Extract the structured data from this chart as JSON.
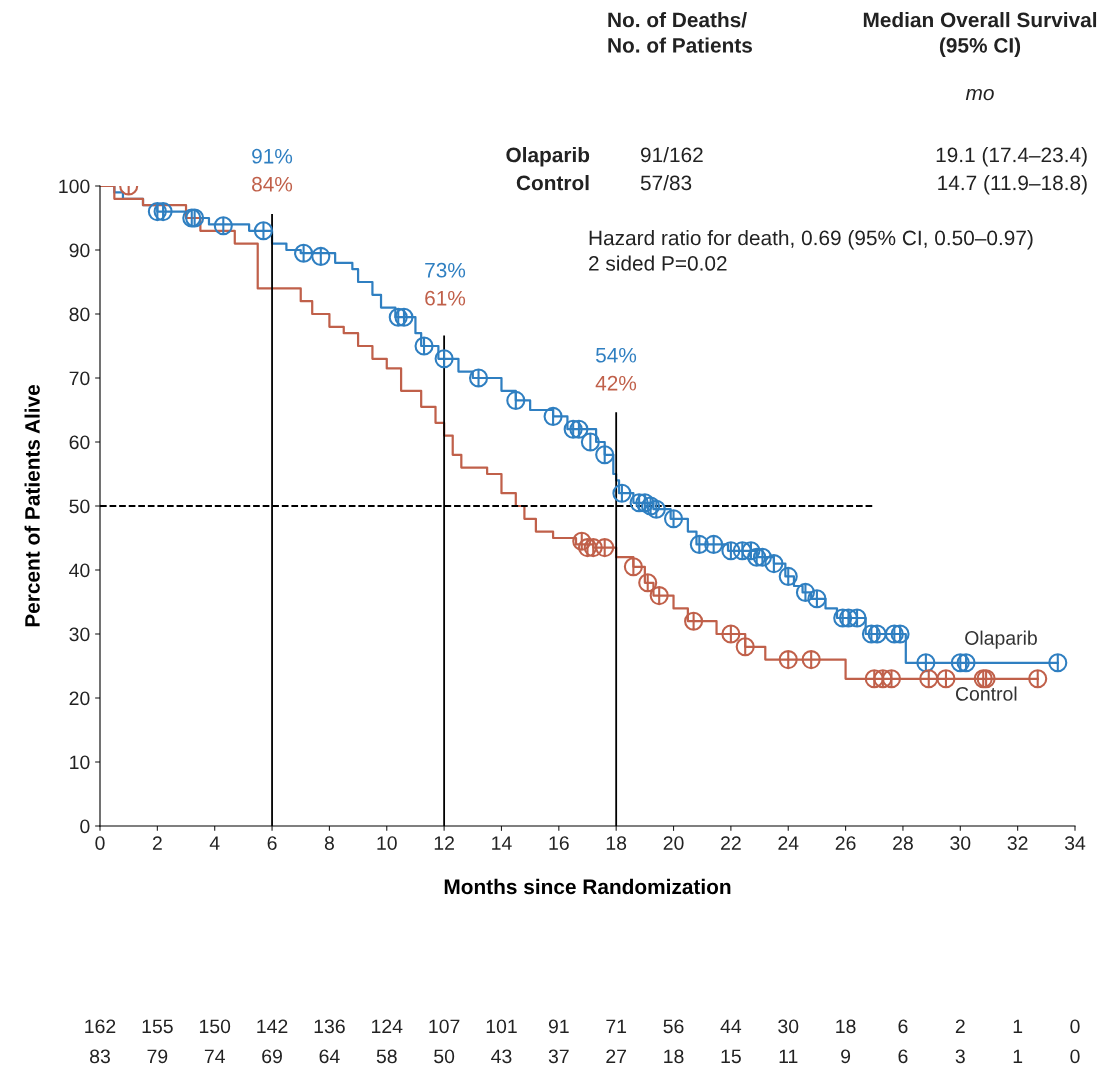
{
  "chart_data": {
    "type": "step",
    "xlabel": "Months since Randomization",
    "ylabel": "Percent of Patients Alive",
    "xlim": [
      0,
      34
    ],
    "xticks": [
      0,
      2,
      4,
      6,
      8,
      10,
      12,
      14,
      16,
      18,
      20,
      22,
      24,
      26,
      28,
      30,
      32,
      34
    ],
    "ylim": [
      0,
      100
    ],
    "yticks": [
      0,
      10,
      20,
      30,
      40,
      50,
      60,
      70,
      80,
      90,
      100
    ],
    "grid": false,
    "legend": false,
    "series": [
      {
        "name": "Olaparib",
        "color": "#2f7fc1",
        "x": [
          0,
          0.5,
          0.8,
          1.5,
          2,
          3,
          3.8,
          5.2,
          6,
          6.5,
          7,
          8.2,
          8.8,
          9,
          9.5,
          9.8,
          10.3,
          11,
          11.2,
          11.8,
          12.5,
          13,
          14,
          14.5,
          15,
          15.8,
          16.3,
          17.3,
          17.6,
          17.9,
          18,
          18.1,
          18.6,
          19.3,
          19.9,
          20.5,
          20.8,
          21.9,
          22.9,
          23.5,
          23.9,
          24.2,
          24.5,
          24.8,
          25.3,
          25.7,
          26.7,
          28.1,
          33.4
        ],
        "values": [
          100,
          99,
          98,
          97,
          96,
          95,
          94,
          93,
          91,
          90,
          89.5,
          88,
          87,
          85,
          83,
          81,
          79.5,
          77,
          75,
          73,
          71,
          70,
          68,
          66.5,
          65,
          64,
          62,
          60,
          58,
          55,
          54,
          52,
          50.5,
          49.5,
          48,
          46,
          44,
          43,
          42,
          41,
          39,
          37.5,
          36.5,
          35.5,
          34,
          32.5,
          30,
          25.5,
          25.5
        ]
      },
      {
        "name": "Control",
        "color": "#c0604a",
        "x": [
          0,
          0.5,
          1.5,
          3,
          3.5,
          4.7,
          5.5,
          7,
          7.4,
          8,
          8.5,
          9,
          9.5,
          10,
          10.5,
          11.2,
          11.7,
          12,
          12.3,
          12.6,
          13.5,
          14,
          14.5,
          14.8,
          15.2,
          15.8,
          16.6,
          17.2,
          18,
          18.6,
          19,
          19.3,
          20,
          20.5,
          21.5,
          22.5,
          23.2,
          26,
          32.7
        ],
        "values": [
          100,
          98,
          97,
          95,
          93,
          91,
          84,
          82,
          80,
          78,
          77,
          75,
          73,
          71.5,
          68,
          65.5,
          63,
          61,
          58,
          56,
          55,
          52,
          50,
          48,
          46,
          45,
          44,
          43.5,
          42,
          40.5,
          38,
          36,
          34,
          32,
          30,
          28,
          26,
          23,
          23
        ]
      },
      {
        "type": "scatter",
        "color": "#2f7fc1",
        "marker": "cross",
        "x": [
          2,
          2.2,
          3.2,
          3.3,
          4.3,
          5.7,
          7.1,
          7.7,
          10.4,
          10.6,
          11.3,
          12,
          13.2,
          14.5,
          15.8,
          16.5,
          16.7,
          17.1,
          17.6,
          18.2,
          18.8,
          19,
          19.2,
          19.4,
          20,
          20.9,
          21.4,
          22,
          22.4,
          22.7,
          22.9,
          23.1,
          23.5,
          24,
          24.6,
          25,
          25.9,
          26.1,
          26.4,
          26.9,
          27.1,
          27.7,
          27.9,
          28.8,
          30,
          30.2,
          33.4
        ],
        "values": [
          96,
          96,
          95,
          95,
          93.8,
          93,
          89.5,
          89,
          79.5,
          79.5,
          75,
          73,
          70,
          66.5,
          64,
          62,
          62,
          60,
          58,
          52,
          50.5,
          50.5,
          50,
          49.5,
          48,
          44,
          44,
          43,
          43,
          43,
          42,
          42,
          41,
          39,
          36.5,
          35.5,
          32.5,
          32.5,
          32.5,
          30,
          30,
          30,
          30,
          25.5,
          25.5,
          25.5,
          25.5
        ]
      },
      {
        "type": "scatter",
        "color": "#c0604a",
        "marker": "cross",
        "x": [
          1,
          16.8,
          17,
          17.2,
          17.6,
          18.6,
          19.1,
          19.5,
          20.7,
          22,
          22.5,
          24,
          24.8,
          27,
          27.3,
          27.6,
          28.9,
          29.5,
          30.8,
          30.9,
          32.7
        ],
        "values": [
          100,
          44.5,
          43.5,
          43.5,
          43.5,
          40.5,
          38,
          36,
          32,
          30,
          28,
          26,
          26,
          23,
          23,
          23,
          23,
          23,
          23,
          23,
          23
        ]
      }
    ],
    "ref_lines": [
      {
        "axis": "x",
        "value": 6
      },
      {
        "axis": "x",
        "value": 12
      },
      {
        "axis": "x",
        "value": 18
      },
      {
        "axis": "y",
        "value": 50,
        "line_style": "dashed"
      }
    ],
    "annotations": [
      "No. of Deaths/\nNo. of Patients",
      "Median Overall Survival\n(95% CI)",
      "mo",
      "Olaparib",
      "Control",
      "91/162",
      "57/83",
      "19.1 (17.4–23.4)",
      "14.7 (11.9–18.8)",
      "Hazard ratio for death, 0.69 (95% CI, 0.50–0.97)\n2 sided P=0.02",
      "91%",
      "84%",
      "73%",
      "61%",
      "54%",
      "42%",
      "162",
      "155",
      "150",
      "142",
      "136",
      "124",
      "107",
      "101",
      "91",
      "71",
      "56",
      "44",
      "30",
      "18",
      "6",
      "2",
      "1",
      "0",
      "83",
      "79",
      "74",
      "69",
      "64",
      "58",
      "50",
      "43",
      "37",
      "27",
      "18",
      "15",
      "11",
      "9",
      "6",
      "3",
      "1",
      "0"
    ]
  }
}
